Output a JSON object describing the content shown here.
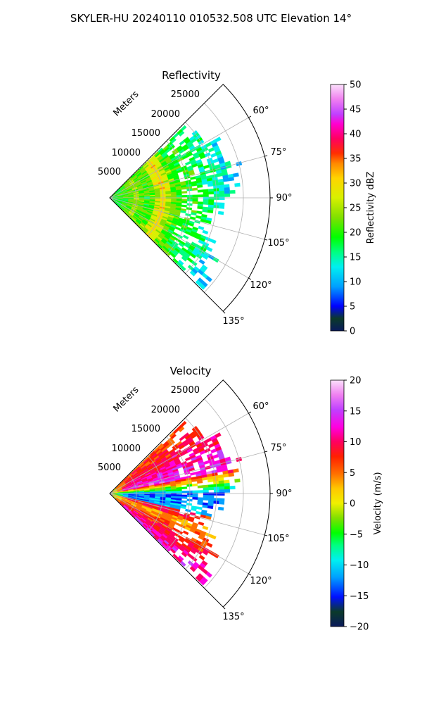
{
  "figure": {
    "suptitle": "SKYLER-HU  20240110  010532.508 UTC Elevation 14°"
  },
  "chart_data": [
    {
      "type": "heatmap",
      "subtype": "polar-sector-radar",
      "title": "Reflectivity",
      "radial_axis_label": "Meters",
      "radial_ticks": [
        "5000",
        "10000",
        "15000",
        "20000",
        "25000"
      ],
      "radial_tick_values": [
        5000,
        10000,
        15000,
        20000,
        25000
      ],
      "range_limit_m": 30000,
      "azimuth_ticks": [
        "60°",
        "75°",
        "90°",
        "105°",
        "120°",
        "135°"
      ],
      "azimuth_tick_values": [
        60,
        75,
        90,
        105,
        120,
        135
      ],
      "azimuth_range_deg": [
        45,
        135
      ],
      "grid": true,
      "colorbar": {
        "label": "Reflectivity dBZ",
        "ticks": [
          "0",
          "5",
          "10",
          "15",
          "20",
          "25",
          "30",
          "35",
          "40",
          "45",
          "50"
        ],
        "range": [
          0,
          50
        ]
      },
      "field": {
        "description_values": "Echo mostly 15-30 dBZ within 0-20 km; bands of 30-38 dBZ near 8-12 km range; isolated 10-20 dBZ returns out to about 22 km.",
        "typical_range": [
          10,
          38
        ]
      }
    },
    {
      "type": "heatmap",
      "subtype": "polar-sector-radar",
      "title": "Velocity",
      "radial_axis_label": "Meters",
      "radial_ticks": [
        "5000",
        "10000",
        "15000",
        "20000",
        "25000"
      ],
      "radial_tick_values": [
        5000,
        10000,
        15000,
        20000,
        25000
      ],
      "range_limit_m": 30000,
      "azimuth_ticks": [
        "60°",
        "75°",
        "90°",
        "105°",
        "120°",
        "135°"
      ],
      "azimuth_tick_values": [
        60,
        75,
        90,
        105,
        120,
        135
      ],
      "azimuth_range_deg": [
        45,
        135
      ],
      "grid": true,
      "colorbar": {
        "label": "Velocity (m/s)",
        "ticks": [
          "−20",
          "−15",
          "−10",
          "−5",
          "0",
          "5",
          "10",
          "15",
          "20"
        ],
        "range": [
          -20,
          20
        ]
      },
      "field": {
        "description_values": "Positive 10-18 m/s at azimuths 50-75° and 110-125°; negative -10 to -16 m/s near 85-100°; near-zero transitions between.",
        "typical_range": [
          -16,
          18
        ]
      }
    }
  ]
}
